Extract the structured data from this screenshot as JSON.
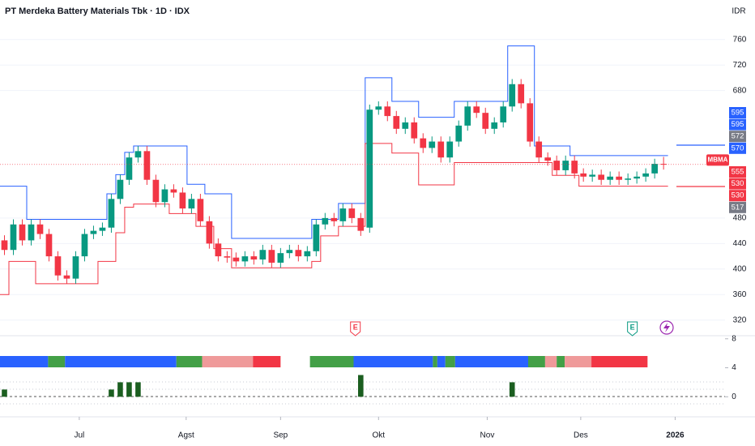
{
  "header": {
    "title": "PT Merdeka Battery Materials Tbk · 1D · IDX",
    "currency": "IDR"
  },
  "chart_data": [
    {
      "type": "candlestick",
      "up_color": "#089981",
      "down_color": "#f23645",
      "xlim": [
        -0.5,
        80.9
      ],
      "xticks": [
        {
          "value": 8.4,
          "label": "Jul"
        },
        {
          "value": 20.4,
          "label": "Agst"
        },
        {
          "value": 31.0,
          "label": "Sep"
        },
        {
          "value": 42.0,
          "label": "Okt"
        },
        {
          "value": 54.2,
          "label": "Nov"
        },
        {
          "value": 64.7,
          "label": "Des"
        },
        {
          "value": 75.3,
          "label": "2026"
        }
      ],
      "ylim": [
        298,
        822
      ],
      "yticks": [
        320,
        360,
        400,
        440,
        480,
        680,
        720,
        760
      ],
      "grid": true,
      "open": [
        445,
        430,
        470,
        445,
        470,
        455,
        420,
        390,
        385,
        420,
        455,
        460,
        465,
        510,
        540,
        575,
        585,
        540,
        505,
        525,
        520,
        495,
        510,
        475,
        440,
        420,
        418,
        412,
        420,
        415,
        430,
        410,
        425,
        430,
        420,
        428,
        470,
        480,
        475,
        495,
        480,
        465,
        650,
        655,
        640,
        620,
        630,
        605,
        590,
        600,
        575,
        600,
        625,
        655,
        645,
        620,
        630,
        655,
        690,
        660,
        600,
        575,
        570,
        555,
        570,
        550,
        545,
        548,
        540,
        545,
        540,
        542,
        545,
        550,
        565
      ],
      "high": [
        453,
        478,
        478,
        478,
        478,
        463,
        428,
        398,
        428,
        463,
        468,
        473,
        518,
        548,
        583,
        593,
        593,
        548,
        533,
        533,
        528,
        518,
        518,
        483,
        448,
        428,
        426,
        428,
        428,
        438,
        438,
        433,
        438,
        438,
        436,
        478,
        488,
        488,
        503,
        503,
        488,
        658,
        663,
        663,
        648,
        638,
        638,
        613,
        608,
        608,
        608,
        633,
        663,
        663,
        653,
        638,
        663,
        698,
        698,
        668,
        608,
        583,
        578,
        578,
        578,
        558,
        556,
        556,
        553,
        553,
        550,
        553,
        558,
        573,
        576
      ],
      "low": [
        422,
        422,
        437,
        437,
        447,
        412,
        382,
        377,
        377,
        412,
        447,
        452,
        457,
        502,
        532,
        567,
        532,
        497,
        497,
        512,
        487,
        487,
        467,
        432,
        412,
        410,
        404,
        404,
        407,
        407,
        402,
        402,
        417,
        412,
        412,
        420,
        462,
        467,
        467,
        472,
        452,
        457,
        642,
        632,
        612,
        612,
        597,
        582,
        582,
        567,
        567,
        592,
        617,
        637,
        612,
        612,
        622,
        647,
        652,
        592,
        567,
        562,
        547,
        547,
        542,
        537,
        537,
        532,
        532,
        532,
        532,
        534,
        537,
        542,
        556
      ],
      "close": [
        430,
        470,
        445,
        470,
        455,
        420,
        390,
        385,
        420,
        455,
        460,
        465,
        510,
        540,
        575,
        585,
        540,
        505,
        525,
        520,
        495,
        510,
        475,
        440,
        420,
        418,
        412,
        420,
        415,
        430,
        410,
        425,
        430,
        420,
        428,
        470,
        480,
        475,
        495,
        480,
        460,
        650,
        655,
        640,
        620,
        630,
        605,
        590,
        600,
        575,
        600,
        625,
        655,
        645,
        620,
        630,
        655,
        690,
        660,
        600,
        575,
        570,
        555,
        570,
        550,
        545,
        548,
        540,
        545,
        540,
        542,
        545,
        550,
        565,
        564
      ],
      "channel_upper_color": "#2962ff",
      "channel_upper": [
        530,
        530,
        530,
        478,
        478,
        478,
        478,
        478,
        478,
        478,
        478,
        478,
        518,
        548,
        583,
        593,
        593,
        593,
        593,
        593,
        593,
        533,
        533,
        518,
        518,
        518,
        448,
        448,
        448,
        448,
        448,
        448,
        448,
        448,
        448,
        478,
        478,
        478,
        503,
        503,
        503,
        700,
        700,
        700,
        663,
        663,
        663,
        638,
        638,
        638,
        638,
        663,
        663,
        663,
        663,
        663,
        663,
        750,
        750,
        750,
        593,
        593,
        593,
        593,
        578,
        578,
        578,
        578,
        578,
        578,
        578,
        578,
        578,
        578,
        578
      ],
      "channel_lower_color": "#f23645",
      "channel_lower": [
        360,
        412,
        412,
        412,
        377,
        377,
        377,
        377,
        377,
        377,
        377,
        412,
        412,
        457,
        497,
        502,
        502,
        502,
        502,
        487,
        487,
        487,
        467,
        467,
        432,
        432,
        402,
        402,
        402,
        402,
        402,
        402,
        402,
        402,
        402,
        412,
        452,
        452,
        467,
        467,
        467,
        597,
        597,
        597,
        582,
        582,
        582,
        532,
        532,
        532,
        532,
        567,
        567,
        567,
        567,
        567,
        567,
        567,
        567,
        567,
        567,
        567,
        547,
        547,
        547,
        530,
        530,
        530,
        530,
        530,
        530,
        530,
        530,
        530,
        530
      ],
      "events": [
        {
          "x": 39.4,
          "label": "E",
          "color": "#f23645"
        },
        {
          "x": 70.5,
          "label": "E",
          "color": "#089981"
        }
      ],
      "symbol_badge": {
        "label": "MBMA",
        "color": "#f23645"
      },
      "price_labels": [
        {
          "value": 595,
          "color": "#2962ff"
        },
        {
          "value": 595,
          "color": "#2962ff"
        },
        {
          "value": 572,
          "color": "#787b86"
        },
        {
          "value": 570,
          "color": "#2962ff"
        },
        {
          "value": 555,
          "color": "#f23645"
        },
        {
          "value": 530,
          "color": "#f23645"
        },
        {
          "value": 530,
          "color": "#f23645"
        },
        {
          "value": 517,
          "color": "#787b86"
        }
      ]
    },
    {
      "type": "bar",
      "ylim": [
        -1.2,
        8.2
      ],
      "yticks": [
        0,
        4,
        8
      ],
      "color": "#1b5e20",
      "x": [
        0,
        12,
        13,
        14,
        15,
        40,
        57
      ],
      "values": [
        1,
        1,
        2,
        2,
        2,
        3,
        2
      ],
      "strip": [
        {
          "start": -0.5,
          "end": 4.9,
          "color": "#2962ff"
        },
        {
          "start": 4.9,
          "end": 6.8,
          "color": "#43a047"
        },
        {
          "start": 6.8,
          "end": 19.3,
          "color": "#2962ff"
        },
        {
          "start": 19.3,
          "end": 22.2,
          "color": "#43a047"
        },
        {
          "start": 22.2,
          "end": 27.9,
          "color": "#ef9a9a"
        },
        {
          "start": 27.9,
          "end": 31.0,
          "color": "#f23645"
        },
        {
          "start": 34.3,
          "end": 39.2,
          "color": "#43a047"
        },
        {
          "start": 39.2,
          "end": 48.1,
          "color": "#2962ff"
        },
        {
          "start": 48.1,
          "end": 48.6,
          "color": "#43a047"
        },
        {
          "start": 48.6,
          "end": 49.5,
          "color": "#2962ff"
        },
        {
          "start": 49.5,
          "end": 50.6,
          "color": "#43a047"
        },
        {
          "start": 50.6,
          "end": 58.8,
          "color": "#2962ff"
        },
        {
          "start": 58.8,
          "end": 60.7,
          "color": "#43a047"
        },
        {
          "start": 60.7,
          "end": 62.0,
          "color": "#ef9a9a"
        },
        {
          "start": 62.0,
          "end": 62.9,
          "color": "#43a047"
        },
        {
          "start": 62.9,
          "end": 65.9,
          "color": "#ef9a9a"
        },
        {
          "start": 65.9,
          "end": 72.2,
          "color": "#f23645"
        }
      ]
    }
  ]
}
